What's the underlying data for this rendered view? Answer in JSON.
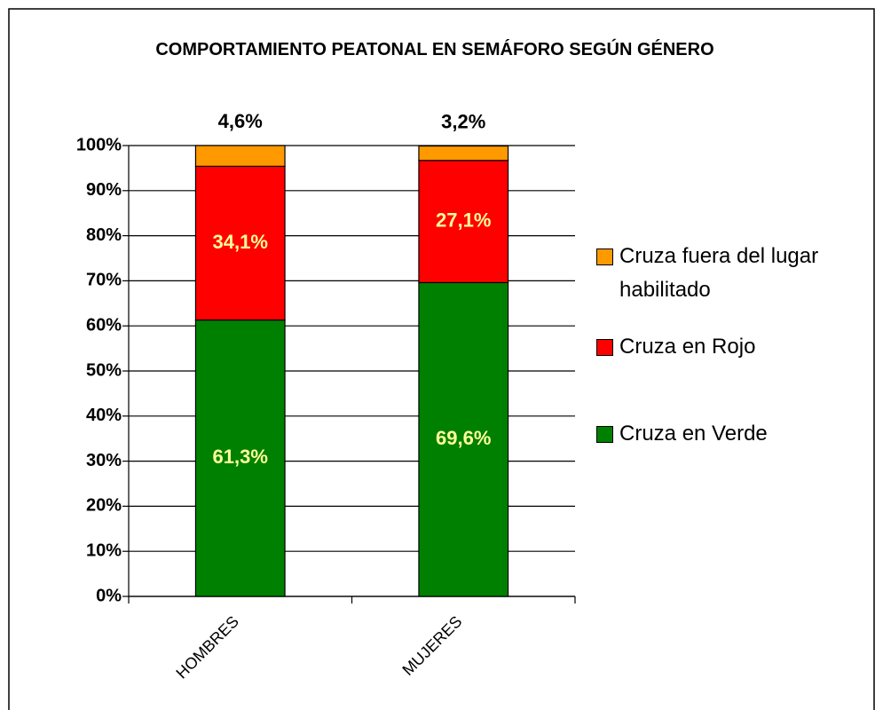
{
  "chart_data": {
    "type": "stacked_bar",
    "title": "COMPORTAMIENTO PEATONAL EN SEMÁFORO SEGÚN GÉNERO",
    "categories": [
      "HOMBRES",
      "MUJERES"
    ],
    "series": [
      {
        "name": "Cruza en Verde",
        "color": "#008000",
        "values": [
          61.3,
          69.6
        ],
        "value_labels": [
          "61,3%",
          "69,6%"
        ]
      },
      {
        "name": "Cruza en Rojo",
        "color": "#ff0000",
        "values": [
          34.1,
          27.1
        ],
        "value_labels": [
          "34,1%",
          "27,1%"
        ]
      },
      {
        "name": "Cruza fuera del lugar habilitado",
        "color": "#ff9900",
        "values": [
          4.6,
          3.2
        ],
        "value_labels": [
          "4,6%",
          "3,2%"
        ]
      }
    ],
    "ylim": [
      0,
      100
    ],
    "yticks": [
      {
        "value": 0,
        "label": "0%"
      },
      {
        "value": 10,
        "label": "10%"
      },
      {
        "value": 20,
        "label": "20%"
      },
      {
        "value": 30,
        "label": "30%"
      },
      {
        "value": 40,
        "label": "40%"
      },
      {
        "value": 50,
        "label": "50%"
      },
      {
        "value": 60,
        "label": "60%"
      },
      {
        "value": 70,
        "label": "70%"
      },
      {
        "value": 80,
        "label": "80%"
      },
      {
        "value": 90,
        "label": "90%"
      },
      {
        "value": 100,
        "label": "100%"
      }
    ],
    "grid": true,
    "legend": "right"
  }
}
